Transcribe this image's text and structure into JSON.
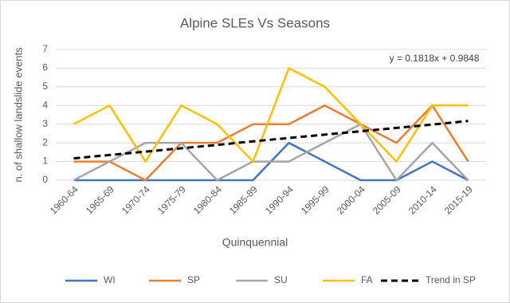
{
  "chart_data": {
    "type": "line",
    "title": "Alpine SLEs Vs Seasons",
    "x_label": "Quinquennial",
    "y_label": "n. of shallow landslide events",
    "annotation": "y = 0.1818x + 0.9848",
    "categories": [
      "1960-64",
      "1965-69",
      "1970-74",
      "1975-79",
      "1980-84",
      "1985-89",
      "1990-94",
      "1995-99",
      "2000-04",
      "2005-09",
      "2010-14",
      "2015-19"
    ],
    "series": [
      {
        "name": "WI",
        "color": "#4472c4",
        "values": [
          0,
          0,
          0,
          0,
          0,
          0,
          2,
          1,
          0,
          0,
          1,
          0
        ]
      },
      {
        "name": "SP",
        "color": "#ed7d31",
        "values": [
          1,
          1,
          0,
          2,
          2,
          3,
          3,
          4,
          3,
          2,
          4,
          1
        ]
      },
      {
        "name": "SU",
        "color": "#a5a5a5",
        "values": [
          0,
          1,
          2,
          2,
          0,
          1,
          1,
          2,
          3,
          0,
          2,
          0
        ]
      },
      {
        "name": "FA",
        "color": "#ffc000",
        "values": [
          3,
          4,
          1,
          4,
          3,
          1,
          6,
          5,
          3,
          1,
          4,
          4
        ]
      },
      {
        "name": "Trend in SP",
        "color": "#000000",
        "dashed": true,
        "values": [
          1.17,
          1.35,
          1.53,
          1.71,
          1.89,
          2.08,
          2.26,
          2.44,
          2.62,
          2.8,
          2.98,
          3.17
        ]
      }
    ],
    "ylim": [
      0,
      7
    ],
    "yticks": [
      0,
      1,
      2,
      3,
      4,
      5,
      6,
      7
    ],
    "grid": true,
    "legend": "bottom"
  }
}
